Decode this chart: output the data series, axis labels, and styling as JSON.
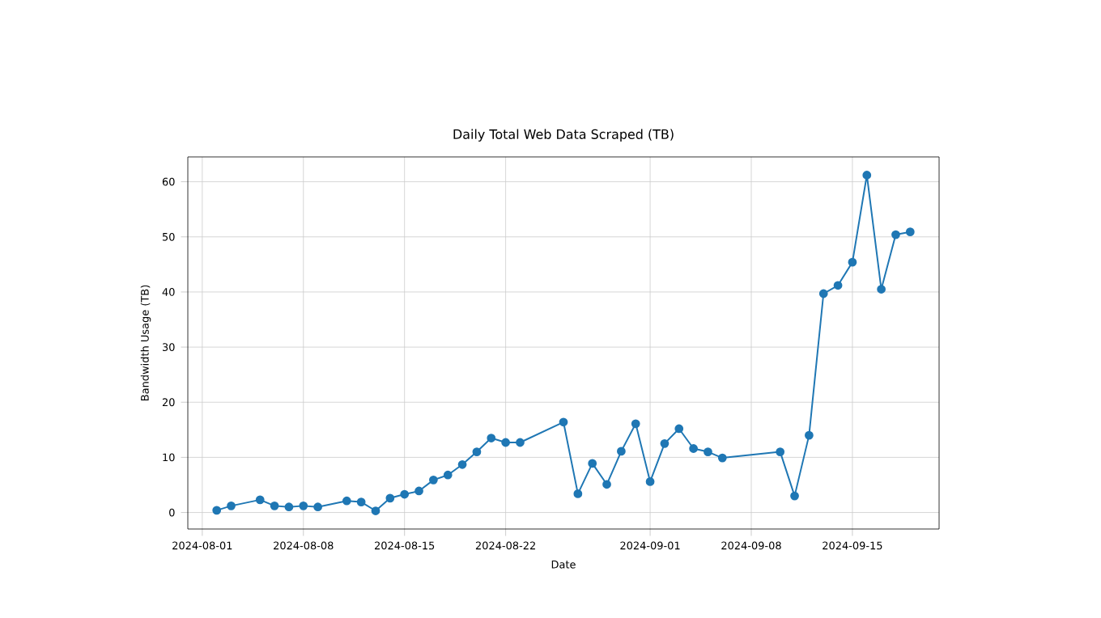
{
  "chart_data": {
    "type": "line",
    "title": "Daily Total Web Data Scraped (TB)",
    "xlabel": "Date",
    "ylabel": "Bandwidth Usage (TB)",
    "x": [
      "2024-08-02",
      "2024-08-03",
      "2024-08-05",
      "2024-08-06",
      "2024-08-07",
      "2024-08-08",
      "2024-08-09",
      "2024-08-11",
      "2024-08-12",
      "2024-08-13",
      "2024-08-14",
      "2024-08-15",
      "2024-08-16",
      "2024-08-17",
      "2024-08-18",
      "2024-08-19",
      "2024-08-20",
      "2024-08-21",
      "2024-08-22",
      "2024-08-23",
      "2024-08-26",
      "2024-08-27",
      "2024-08-28",
      "2024-08-29",
      "2024-08-30",
      "2024-08-31",
      "2024-09-01",
      "2024-09-02",
      "2024-09-03",
      "2024-09-04",
      "2024-09-05",
      "2024-09-06",
      "2024-09-10",
      "2024-09-11",
      "2024-09-12",
      "2024-09-13",
      "2024-09-14",
      "2024-09-15",
      "2024-09-16",
      "2024-09-17",
      "2024-09-18",
      "2024-09-19"
    ],
    "series": [
      {
        "color": "#1f77b4",
        "values": [
          0.4,
          1.2,
          2.3,
          1.2,
          1.0,
          1.2,
          1.0,
          2.1,
          1.9,
          0.3,
          2.6,
          3.3,
          3.9,
          5.9,
          6.8,
          8.7,
          11.0,
          13.5,
          12.7,
          12.7,
          16.4,
          3.4,
          8.9,
          5.1,
          11.1,
          16.1,
          5.6,
          12.5,
          15.2,
          11.6,
          11.0,
          9.9,
          11.0,
          3.0,
          14.0,
          39.7,
          41.2,
          45.4,
          61.2,
          40.5,
          50.4,
          50.9
        ]
      }
    ],
    "xlim": [
      "2024-07-31",
      "2024-09-21"
    ],
    "ylim": [
      -3,
      64.5
    ],
    "xticks": [
      "2024-08-01",
      "2024-08-08",
      "2024-08-15",
      "2024-08-22",
      "2024-09-01",
      "2024-09-08",
      "2024-09-15"
    ],
    "yticks": [
      0,
      10,
      20,
      30,
      40,
      50,
      60
    ],
    "grid": true,
    "marker": "circle",
    "line_style": "solid"
  }
}
